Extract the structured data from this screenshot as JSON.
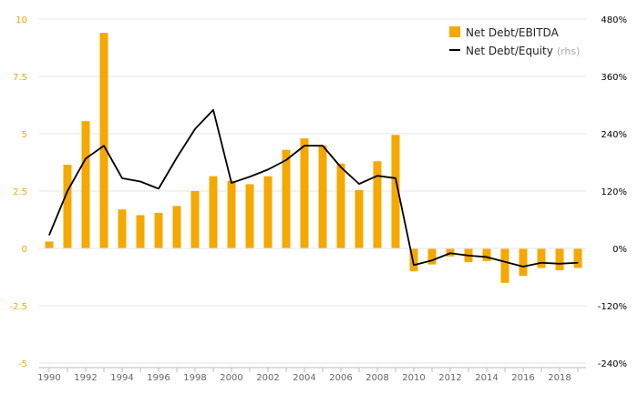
{
  "chart_data": {
    "type": "bar",
    "x": [
      1990,
      1991,
      1992,
      1993,
      1994,
      1995,
      1996,
      1997,
      1998,
      1999,
      2000,
      2001,
      2002,
      2003,
      2004,
      2005,
      2006,
      2007,
      2008,
      2009,
      2010,
      2011,
      2012,
      2013,
      2014,
      2015,
      2016,
      2017,
      2018,
      2019
    ],
    "x_tick_labels": [
      "1990",
      "1992",
      "1994",
      "1996",
      "1998",
      "2000",
      "2002",
      "2004",
      "2006",
      "2008",
      "2010",
      "2012",
      "2014",
      "2016",
      "2018"
    ],
    "series": [
      {
        "name": "Net Debt/EBITDA",
        "type": "bar",
        "axis": "left",
        "color": "#f5a800",
        "values": [
          0.3,
          3.65,
          5.55,
          9.4,
          1.7,
          1.45,
          1.55,
          1.85,
          2.5,
          3.15,
          2.95,
          2.8,
          3.15,
          4.3,
          4.8,
          4.5,
          3.7,
          2.55,
          3.8,
          4.95,
          -1.0,
          -0.7,
          -0.35,
          -0.6,
          -0.55,
          -1.5,
          -1.2,
          -0.85,
          -0.95,
          -0.85
        ]
      },
      {
        "name": "Net Debt/Equity",
        "name_suffix": "(rhs)",
        "type": "line",
        "axis": "right",
        "color": "#000000",
        "values": [
          28,
          120,
          188,
          215,
          147,
          140,
          125,
          190,
          250,
          290,
          137,
          150,
          165,
          185,
          215,
          215,
          170,
          135,
          152,
          147,
          -35,
          -25,
          -10,
          -15,
          -18,
          -28,
          -38,
          -30,
          -32,
          -30
        ]
      }
    ],
    "y_left": {
      "min": -5,
      "max": 10,
      "ticks": [
        "-5",
        "-2.5",
        "0",
        "2.5",
        "5",
        "7.5",
        "10"
      ]
    },
    "y_right": {
      "min": -240,
      "max": 480,
      "ticks": [
        "-240%",
        "-120%",
        "0%",
        "120%",
        "240%",
        "360%",
        "480%"
      ]
    },
    "grid": "horizontal",
    "legend_position": "top-right",
    "colors": {
      "bar": "#f5a800",
      "line": "#000000",
      "grid": "#e5e5e5",
      "axis": "#bbbbbb"
    }
  }
}
